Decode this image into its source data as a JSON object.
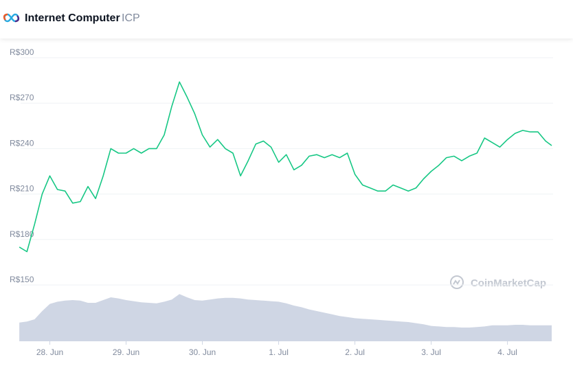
{
  "header": {
    "title": "Internet Computer",
    "symbol": "ICP"
  },
  "chart_data": {
    "type": "line",
    "color": "#16c784",
    "grid": true,
    "watermark": "CoinMarketCap",
    "x": [
      -0.4,
      -0.3,
      -0.2,
      -0.1,
      0,
      0.1,
      0.2,
      0.3,
      0.4,
      0.5,
      0.6,
      0.7,
      0.8,
      0.9,
      1.0,
      1.1,
      1.2,
      1.3,
      1.4,
      1.5,
      1.6,
      1.7,
      1.8,
      1.9,
      2.0,
      2.1,
      2.2,
      2.3,
      2.4,
      2.5,
      2.6,
      2.7,
      2.8,
      2.9,
      3.0,
      3.1,
      3.2,
      3.3,
      3.4,
      3.5,
      3.6,
      3.7,
      3.8,
      3.9,
      4.0,
      4.1,
      4.2,
      4.3,
      4.4,
      4.5,
      4.6,
      4.7,
      4.8,
      4.9,
      5.0,
      5.1,
      5.2,
      5.3,
      5.4,
      5.5,
      5.6,
      5.7,
      5.8,
      5.9,
      6.0,
      6.1,
      6.2,
      6.3,
      6.4,
      6.5,
      6.58
    ],
    "values": [
      175,
      172,
      190,
      210,
      222,
      213,
      212,
      204,
      205,
      215,
      207,
      222,
      240,
      237,
      237,
      240,
      237,
      240,
      240,
      249,
      268,
      284,
      274,
      263,
      249,
      241,
      246,
      240,
      237,
      222,
      232,
      243,
      245,
      241,
      231,
      236,
      226,
      229,
      235,
      236,
      234,
      236,
      234,
      237,
      223,
      216,
      214,
      212,
      212,
      216,
      214,
      212,
      214,
      220,
      225,
      229,
      234,
      235,
      232,
      235,
      237,
      247,
      244,
      241,
      246,
      250,
      252,
      251,
      251,
      245,
      242
    ],
    "volume": {
      "color": "#cfd6e4",
      "values": [
        34,
        36,
        40,
        55,
        68,
        72,
        74,
        75,
        74,
        70,
        70,
        75,
        80,
        78,
        75,
        73,
        71,
        70,
        69,
        72,
        76,
        86,
        80,
        75,
        74,
        76,
        78,
        79,
        79,
        78,
        76,
        75,
        74,
        73,
        72,
        69,
        65,
        62,
        58,
        55,
        52,
        49,
        46,
        44,
        42,
        41,
        40,
        39,
        38,
        37,
        36,
        35,
        33,
        31,
        28,
        27,
        26,
        26,
        25,
        25,
        26,
        27,
        29,
        29,
        29,
        30,
        30,
        29,
        29,
        29,
        29
      ]
    },
    "xlim": [
      -0.41,
      6.58
    ],
    "xticks": [
      {
        "value": 0,
        "label": "28. Jun"
      },
      {
        "value": 1,
        "label": "29. Jun"
      },
      {
        "value": 2,
        "label": "30. Jun"
      },
      {
        "value": 3,
        "label": "1. Jul"
      },
      {
        "value": 4,
        "label": "2. Jul"
      },
      {
        "value": 5,
        "label": "3. Jul"
      },
      {
        "value": 6,
        "label": "4. Jul"
      }
    ],
    "ylim": [
      150,
      300
    ],
    "yticks": [
      {
        "value": 150,
        "label": "R$150"
      },
      {
        "value": 180,
        "label": "R$180"
      },
      {
        "value": 210,
        "label": "R$210"
      },
      {
        "value": 240,
        "label": "R$240"
      },
      {
        "value": 270,
        "label": "R$270"
      },
      {
        "value": 300,
        "label": "R$300"
      }
    ],
    "y2lim": [
      0,
      100
    ]
  }
}
